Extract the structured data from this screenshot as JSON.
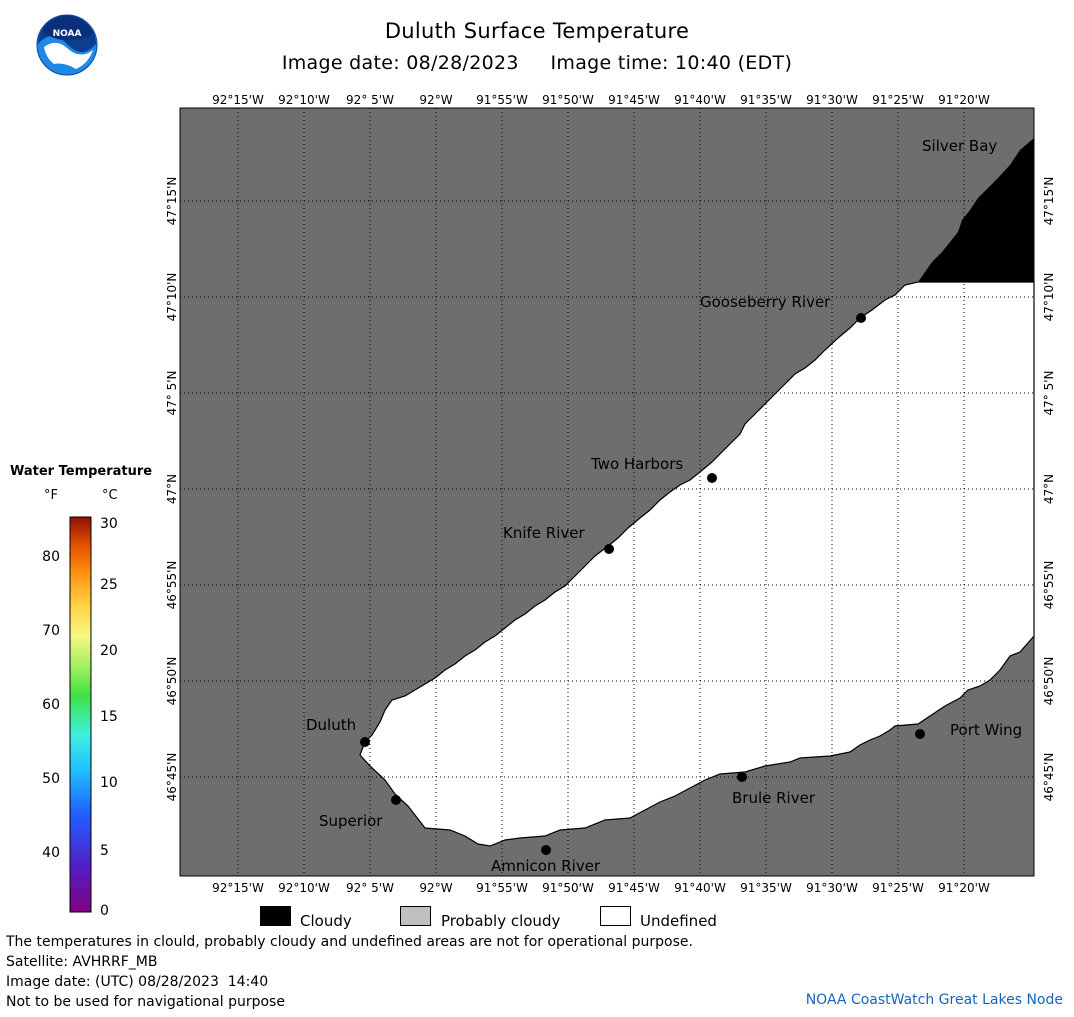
{
  "title": "Duluth Surface Temperature",
  "image_date_label": "Image date: 08/28/2023",
  "image_time_label": "Image time: 10:40 (EDT)",
  "logo_text": "NOAA",
  "map": {
    "lon_labels": [
      "92°15'W",
      "92°10'W",
      "92° 5'W",
      "92°W",
      "91°55'W",
      "91°50'W",
      "91°45'W",
      "91°40'W",
      "91°35'W",
      "91°30'W",
      "91°25'W",
      "91°20'W"
    ],
    "lat_labels": [
      "47°15'N",
      "47°10'N",
      "47° 5'N",
      "47°N",
      "46°55'N",
      "46°50'N",
      "46°45'N"
    ],
    "places": [
      {
        "name": "Silver Bay"
      },
      {
        "name": "Gooseberry River"
      },
      {
        "name": "Two Harbors"
      },
      {
        "name": "Knife River"
      },
      {
        "name": "Duluth"
      },
      {
        "name": "Superior"
      },
      {
        "name": "Amnicon River"
      },
      {
        "name": "Brule River"
      },
      {
        "name": "Port Wing"
      }
    ],
    "colors": {
      "land": "#6e6e6e",
      "water": "#ffffff",
      "cloud": "#000000",
      "grid": "#000000"
    }
  },
  "legend": {
    "title": "Water Temperature",
    "unit_f": "°F",
    "unit_c": "°C",
    "f_ticks": [
      "80",
      "70",
      "60",
      "50",
      "40"
    ],
    "c_ticks": [
      "30",
      "25",
      "20",
      "15",
      "10",
      "5",
      "0"
    ]
  },
  "key": {
    "cloudy": "Cloudy",
    "probably_cloudy": "Probably cloudy",
    "undefined": "Undefined",
    "cloudy_color": "#000000",
    "probably_cloudy_color": "#c0c0c0",
    "undefined_color": "#ffffff"
  },
  "notes": {
    "line1": "The temperatures in clould, probably cloudy and undefined areas are not for operational purpose.",
    "line2": "Satellite: AVHRRF_MB",
    "line3": "Image date: (UTC) 08/28/2023  14:40",
    "line4": "Not to be used for navigational purpose"
  },
  "credit": "NOAA CoastWatch Great Lakes Node"
}
